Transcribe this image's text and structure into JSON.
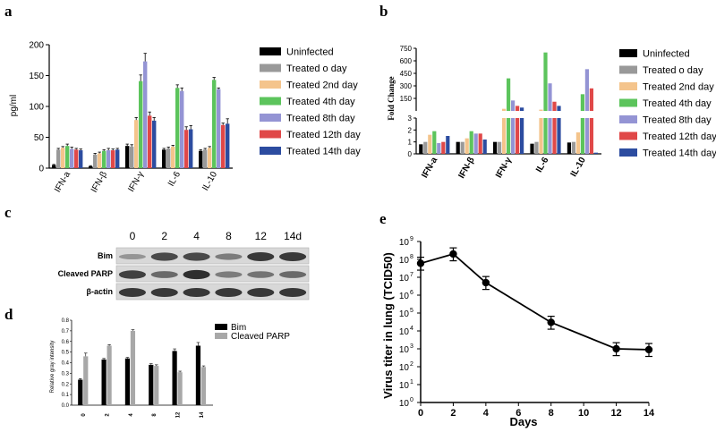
{
  "panel_labels": {
    "a": "a",
    "b": "b",
    "c": "c",
    "d": "d",
    "e": "e"
  },
  "colors": {
    "uninfected": "#000000",
    "treated_0": "#999999",
    "treated_2": "#f4c48c",
    "treated_4": "#5cc45c",
    "treated_8": "#9494d4",
    "treated_12": "#e04848",
    "treated_14": "#2c4ca0",
    "bim": "#000000",
    "cleaved_parp": "#a8a8a8",
    "line": "#000000"
  },
  "chart_data": [
    {
      "id": "a",
      "type": "bar",
      "title": "",
      "xlabel": "",
      "ylabel": "pg/ml",
      "ylim": [
        0,
        200
      ],
      "yticks": [
        "0",
        "50",
        "100",
        "150",
        "200"
      ],
      "categories": [
        "IFN-a",
        "IFN-β",
        "IFN-γ",
        "IL-6",
        "IL-10"
      ],
      "series": [
        {
          "name": "Uninfected",
          "color_key": "uninfected",
          "values": [
            5,
            3,
            36,
            30,
            28
          ],
          "err": [
            1,
            1,
            3,
            2,
            2
          ]
        },
        {
          "name": "Treated o day",
          "color_key": "treated_0",
          "values": [
            30,
            22,
            35,
            32,
            30
          ],
          "err": [
            2,
            2,
            3,
            2,
            2
          ]
        },
        {
          "name": "Treated 2nd day",
          "color_key": "treated_2",
          "values": [
            33,
            24,
            78,
            35,
            33
          ],
          "err": [
            2,
            2,
            4,
            2,
            2
          ]
        },
        {
          "name": "Treated 4th day",
          "color_key": "treated_4",
          "values": [
            36,
            28,
            141,
            130,
            143
          ],
          "err": [
            3,
            2,
            10,
            5,
            4
          ]
        },
        {
          "name": "Treated 8th day",
          "color_key": "treated_8",
          "values": [
            31,
            29,
            173,
            125,
            128
          ],
          "err": [
            3,
            3,
            13,
            5,
            2
          ]
        },
        {
          "name": "Treated 12th day",
          "color_key": "treated_12",
          "values": [
            30,
            29,
            85,
            62,
            70
          ],
          "err": [
            2,
            2,
            6,
            5,
            3
          ]
        },
        {
          "name": "Treated 14th day",
          "color_key": "treated_14",
          "values": [
            29,
            30,
            77,
            63,
            72
          ],
          "err": [
            2,
            2,
            5,
            6,
            8
          ]
        }
      ],
      "legend_position": "right"
    },
    {
      "id": "b",
      "type": "bar",
      "title": "",
      "xlabel": "",
      "ylabel": "Fold Change",
      "scale": "broken",
      "ylim_lower": [
        0,
        3
      ],
      "ylim_upper": [
        3,
        750
      ],
      "yticks_lower": [
        "0",
        "1",
        "2",
        "3"
      ],
      "yticks_upper": [
        "150",
        "300",
        "450",
        "600",
        "750"
      ],
      "categories": [
        "IFN-a",
        "IFN-β",
        "IFN-γ",
        "IL-6",
        "IL-10"
      ],
      "series": [
        {
          "name": "Uninfected",
          "color_key": "uninfected",
          "values": [
            0.8,
            1.0,
            1.0,
            0.85,
            0.95
          ]
        },
        {
          "name": "Treated o day",
          "color_key": "treated_0",
          "values": [
            1.0,
            1.0,
            1.0,
            1.0,
            1.0
          ]
        },
        {
          "name": "Treated 2nd day",
          "color_key": "treated_2",
          "values": [
            1.6,
            1.3,
            25,
            15,
            1.8
          ]
        },
        {
          "name": "Treated 4th day",
          "color_key": "treated_4",
          "values": [
            1.9,
            1.9,
            390,
            700,
            200
          ]
        },
        {
          "name": "Treated 8th day",
          "color_key": "treated_8",
          "values": [
            0.9,
            1.7,
            125,
            330,
            500
          ]
        },
        {
          "name": "Treated 12th day",
          "color_key": "treated_12",
          "values": [
            1.0,
            1.7,
            60,
            110,
            270
          ]
        },
        {
          "name": "Treated 14th day",
          "color_key": "treated_14",
          "values": [
            1.5,
            1.2,
            40,
            60,
            0.1
          ]
        }
      ],
      "legend_position": "right"
    },
    {
      "id": "d",
      "type": "bar",
      "title": "",
      "xlabel": "",
      "ylabel": "Relative gray intensity",
      "ylim": [
        0,
        0.8
      ],
      "yticks": [
        "0.0",
        "0.1",
        "0.2",
        "0.3",
        "0.4",
        "0.5",
        "0.6",
        "0.7",
        "0.8"
      ],
      "categories": [
        "0",
        "2",
        "4",
        "8",
        "12",
        "14"
      ],
      "series": [
        {
          "name": "Bim",
          "color_key": "bim",
          "values": [
            0.24,
            0.43,
            0.44,
            0.38,
            0.51,
            0.56
          ],
          "err": [
            0.01,
            0.01,
            0.01,
            0.01,
            0.02,
            0.03
          ]
        },
        {
          "name": "Cleaved PARP",
          "color_key": "cleaved_parp",
          "values": [
            0.46,
            0.56,
            0.7,
            0.37,
            0.31,
            0.36
          ],
          "err": [
            0.03,
            0.01,
            0.01,
            0.01,
            0.01,
            0.01
          ]
        }
      ],
      "legend_position": "top-right"
    },
    {
      "id": "e",
      "type": "line",
      "title": "",
      "xlabel": "Days",
      "ylabel": "Virus titer in lung (TCID50)",
      "xlim": [
        0,
        14
      ],
      "xticks": [
        "0",
        "2",
        "4",
        "6",
        "8",
        "10",
        "12",
        "14"
      ],
      "yscale": "log",
      "ylim": [
        1,
        1000000000
      ],
      "yticks": [
        "10",
        "10",
        "10",
        "10",
        "10",
        "10",
        "10",
        "10",
        "10",
        "10"
      ],
      "ytick_exponents": [
        "0",
        "1",
        "2",
        "3",
        "4",
        "5",
        "6",
        "7",
        "8",
        "9"
      ],
      "x": [
        0,
        2,
        4,
        8,
        12,
        14
      ],
      "y": [
        60000000,
        200000000,
        5000000,
        30000,
        1000,
        900
      ],
      "err_low": [
        60000000,
        80000000,
        3000000,
        15000,
        1000,
        900
      ],
      "err_high": [
        60000000,
        500000000,
        8000000,
        50000,
        1000,
        900
      ]
    }
  ],
  "western_blot": {
    "lanes": [
      "0",
      "2",
      "4",
      "8",
      "12",
      "14d"
    ],
    "rows": [
      "Bim",
      "Cleaved PARP",
      "β-actin"
    ],
    "intensity": [
      [
        0.3,
        0.75,
        0.75,
        0.45,
        0.85,
        0.85
      ],
      [
        0.8,
        0.55,
        0.9,
        0.45,
        0.5,
        0.55
      ],
      [
        0.85,
        0.85,
        0.85,
        0.85,
        0.85,
        0.85
      ]
    ]
  }
}
